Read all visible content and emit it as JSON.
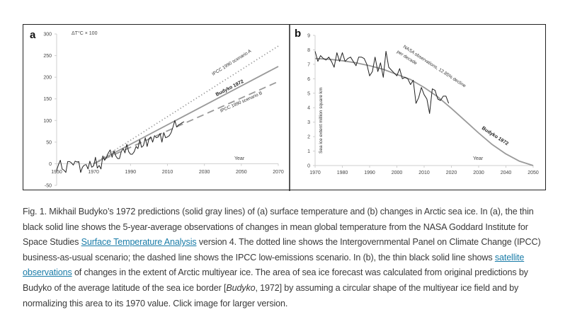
{
  "chart_data": [
    {
      "panel": "a",
      "type": "line",
      "ylabel": "ΔT°C × 100",
      "xlabel": "Year",
      "ylim": [
        -50,
        300
      ],
      "xlim": [
        1950,
        2070
      ],
      "yticks": [
        -50,
        0,
        50,
        100,
        150,
        200,
        250,
        300
      ],
      "xticks": [
        1950,
        1970,
        1990,
        2010,
        2030,
        2050,
        2070
      ],
      "grid": false,
      "series": [
        {
          "name": "Observations (5-year average)",
          "style": "thin black solid",
          "color": "#222222",
          "x": [
            1950,
            1951,
            1952,
            1953,
            1954,
            1955,
            1956,
            1957,
            1958,
            1959,
            1960,
            1961,
            1962,
            1963,
            1964,
            1965,
            1966,
            1967,
            1968,
            1969,
            1970,
            1971,
            1972,
            1973,
            1974,
            1975,
            1976,
            1977,
            1978,
            1979,
            1980,
            1981,
            1982,
            1983,
            1984,
            1985,
            1986,
            1987,
            1988,
            1989,
            1990,
            1991,
            1992,
            1993,
            1994,
            1995,
            1996,
            1997,
            1998,
            1999,
            2000,
            2001,
            2002,
            2003,
            2004,
            2005,
            2006,
            2007,
            2008,
            2009,
            2010,
            2011,
            2012,
            2013,
            2014,
            2015,
            2016,
            2017,
            2018,
            2019
          ],
          "y": [
            -15,
            -2,
            8,
            -12,
            -15,
            -20,
            5,
            5,
            2,
            -3,
            6,
            4,
            5,
            -20,
            -8,
            -3,
            -2,
            -12,
            6,
            -8,
            -5,
            15,
            -10,
            -4,
            -12,
            18,
            8,
            15,
            25,
            32,
            15,
            30,
            18,
            12,
            12,
            28,
            35,
            25,
            45,
            28,
            22,
            22,
            28,
            40,
            35,
            55,
            38,
            42,
            60,
            40,
            58,
            62,
            50,
            65,
            60,
            62,
            70,
            50,
            72,
            60,
            62,
            65,
            72,
            85,
            100,
            85,
            90,
            92,
            95,
            97
          ]
        },
        {
          "name": "IPCC 1990 scenario A",
          "style": "dotted gray",
          "color": "#8a8a8a",
          "x": [
            1970,
            2070
          ],
          "y": [
            0,
            272
          ]
        },
        {
          "name": "Budyko 1972",
          "style": "solid gray",
          "color": "#9a9a9a",
          "x": [
            1970,
            2070
          ],
          "y": [
            0,
            225
          ]
        },
        {
          "name": "IPCC 1990 scenario B",
          "style": "dashed gray",
          "color": "#9a9a9a",
          "x": [
            1970,
            2070
          ],
          "y": [
            0,
            190
          ]
        }
      ],
      "annotations": [
        "IPCC 1990 scenario A",
        "Budyko 1972",
        "IPCC 1990 scenario B",
        "Year"
      ]
    },
    {
      "panel": "b",
      "type": "line",
      "ylabel": "Sea ice extent million square km",
      "xlabel": "Year",
      "ylim": [
        0,
        9
      ],
      "xlim": [
        1970,
        2050
      ],
      "yticks": [
        0,
        1,
        2,
        3,
        4,
        5,
        6,
        7,
        8,
        9
      ],
      "xticks": [
        1970,
        1980,
        1990,
        2000,
        2010,
        2020,
        2030,
        2040,
        2050
      ],
      "grid": false,
      "series": [
        {
          "name": "NASA observations",
          "style": "thin black solid",
          "color": "#222222",
          "x": [
            1970,
            1971,
            1972,
            1973,
            1974,
            1975,
            1976,
            1977,
            1978,
            1979,
            1980,
            1981,
            1982,
            1983,
            1984,
            1985,
            1986,
            1987,
            1988,
            1989,
            1990,
            1991,
            1992,
            1993,
            1994,
            1995,
            1996,
            1997,
            1998,
            1999,
            2000,
            2001,
            2002,
            2003,
            2004,
            2005,
            2006,
            2007,
            2008,
            2009,
            2010,
            2011,
            2012,
            2013,
            2014,
            2015,
            2016,
            2017,
            2018,
            2019
          ],
          "y": [
            7.9,
            7.2,
            7.6,
            7.4,
            7.3,
            7.5,
            7.2,
            6.8,
            7.8,
            7.2,
            7.8,
            7.2,
            7.4,
            7.5,
            7.2,
            6.9,
            7.5,
            7.5,
            7.4,
            7.0,
            6.2,
            6.5,
            7.5,
            6.5,
            7.1,
            6.1,
            7.9,
            6.8,
            6.6,
            6.4,
            6.2,
            6.7,
            6.0,
            6.1,
            6.0,
            5.6,
            5.9,
            4.3,
            4.7,
            5.4,
            4.9,
            4.6,
            3.6,
            5.3,
            5.2,
            4.6,
            4.5,
            4.8,
            4.8,
            4.3
          ]
        },
        {
          "name": "Budyko 1972",
          "style": "solid gray",
          "color": "#9a9a9a",
          "x": [
            1970,
            1975,
            1980,
            1985,
            1990,
            1995,
            2000,
            2005,
            2010,
            2015,
            2020,
            2025,
            2030,
            2035,
            2040,
            2045,
            2050
          ],
          "y": [
            7.4,
            7.35,
            7.25,
            7.1,
            6.9,
            6.65,
            6.3,
            5.95,
            5.4,
            4.75,
            3.95,
            3.1,
            2.25,
            1.45,
            0.8,
            0.3,
            0.0
          ]
        }
      ],
      "annotations": [
        "NASA observations, 12.85% decline per decade",
        "Budyko 1972",
        "Year"
      ]
    }
  ],
  "figure": {
    "panel_a_letter": "a",
    "panel_b_letter": "b",
    "a_ylabel": "ΔT°C × 100",
    "a_year_label": "Year",
    "a_label_scenario_a": "IPCC 1990 scenario A",
    "a_label_budyko": "Budyko 1972",
    "a_label_scenario_b": "IPCC 1990 scenario B",
    "b_ylabel": "Sea ice extent million square km",
    "b_year_label": "Year",
    "b_label_nasa_1": "NASA observations, 12.85% decline",
    "b_label_nasa_2": "per decade",
    "b_label_budyko": "Budyko 1972"
  },
  "caption": {
    "part1": "Fig. 1. Mikhail Budyko’s 1972 predictions (solid gray lines) of (a) surface temperature and (b) changes in Arctic sea ice. In (a), the thin black solid line shows the 5-year-average observations of changes in mean global temperature from the NASA Goddard Institute for Space Studies ",
    "link1": "Surface Temperature Analysis",
    "part2": " version 4. The dotted line shows the Intergovernmental Panel on Climate Change (IPCC) business-as-usual scenario; the dashed line shows the IPCC low-emissions scenario. In (b), the thin black solid line shows ",
    "link2": "satellite observations",
    "part3": " of changes in the extent of Arctic multiyear ice. The area of sea ice forecast was calculated from original predictions by Budyko of the average latitude of the sea ice border [",
    "citation_italic": "Budyko",
    "part4": ", 1972] by assuming a circular shape of the multiyear ice field and by normalizing this area to its 1970 value. Click image for larger version."
  },
  "colors": {
    "link": "#1a7ca8",
    "observation_line": "#222222",
    "model_line": "#9a9a9a"
  }
}
